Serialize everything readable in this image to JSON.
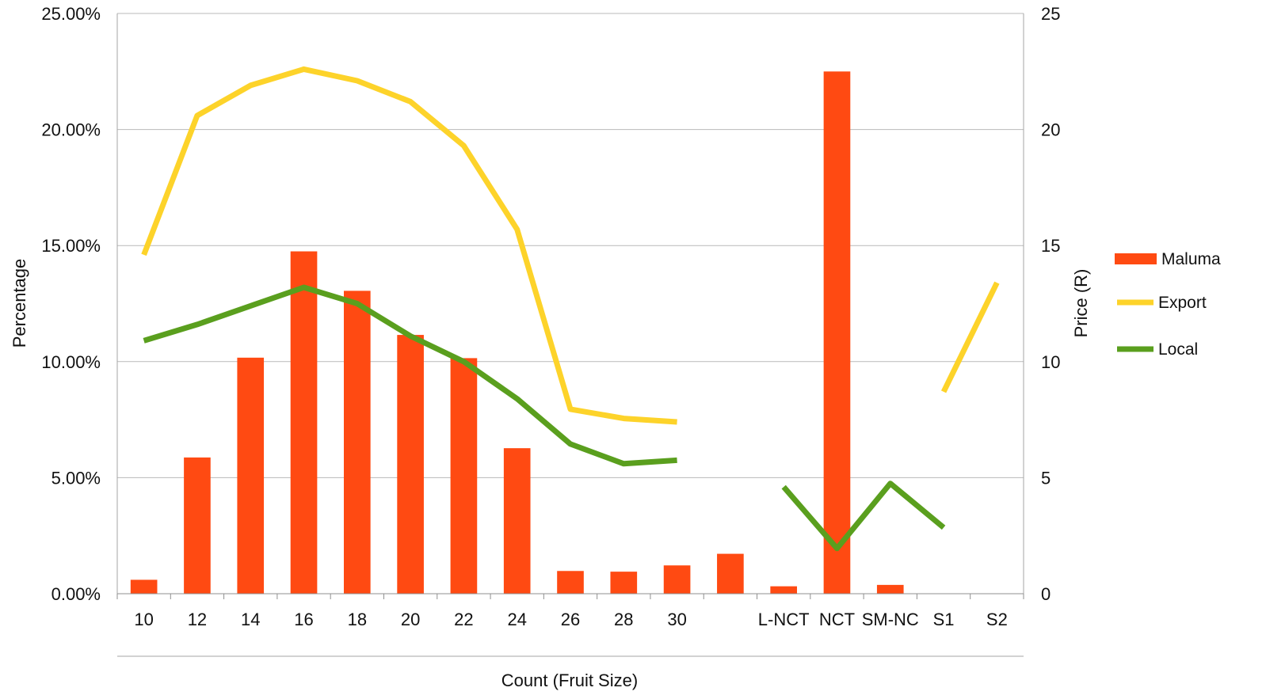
{
  "chart_data": {
    "type": "bar",
    "title": "",
    "categories": [
      "10",
      "12",
      "14",
      "16",
      "18",
      "20",
      "22",
      "24",
      "26",
      "28",
      "30",
      "",
      "L-NCT",
      "NCT",
      "SM-NC",
      "S1",
      "S2"
    ],
    "xlabel": "Count (Fruit Size)",
    "ylabel": "Percentage",
    "y2label": "Price (R)",
    "ylim": [
      0,
      25
    ],
    "y2lim": [
      0,
      25
    ],
    "yticks": [
      "0.00%",
      "5.00%",
      "10.00%",
      "15.00%",
      "20.00%",
      "25.00%"
    ],
    "y2ticks": [
      "0",
      "5",
      "10",
      "15",
      "20",
      "25"
    ],
    "grid": true,
    "legend_position": "right",
    "series": [
      {
        "name": "Maluma",
        "kind": "bar",
        "axis": "left",
        "color": "#FF4A12",
        "values": [
          0.6,
          5.87,
          10.17,
          14.75,
          13.05,
          11.15,
          10.15,
          6.27,
          0.98,
          0.95,
          1.22,
          1.72,
          0.32,
          22.5,
          0.38,
          null,
          null
        ]
      },
      {
        "name": "Export",
        "kind": "line",
        "axis": "right",
        "color": "#FDD32A",
        "values": [
          14.6,
          20.6,
          21.9,
          22.6,
          22.1,
          21.2,
          19.3,
          15.7,
          7.95,
          7.55,
          7.4,
          null,
          null,
          null,
          null,
          8.7,
          13.4
        ]
      },
      {
        "name": "Local",
        "kind": "line",
        "axis": "right",
        "color": "#5A9F1E",
        "values": [
          10.9,
          11.6,
          12.4,
          13.2,
          12.5,
          11.1,
          10.0,
          8.4,
          6.45,
          5.6,
          5.75,
          null,
          4.6,
          1.95,
          4.75,
          2.85,
          null
        ]
      }
    ]
  }
}
